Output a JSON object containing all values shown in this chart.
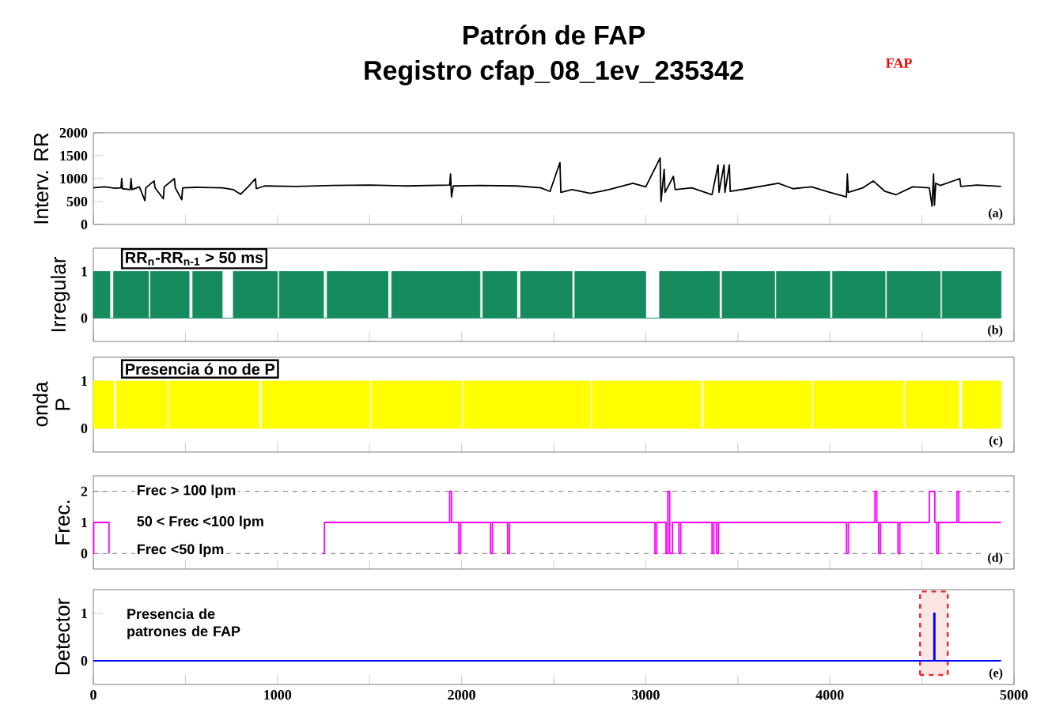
{
  "chart_data": [
    {
      "type": "line",
      "title": "Patrón de FAP",
      "subtitle": "Registro cfap_08_1ev_235342",
      "ylabel": "Interv. RR",
      "x": [
        0,
        60,
        120,
        150,
        154,
        158,
        200,
        205,
        210,
        250,
        280,
        285,
        330,
        335,
        380,
        385,
        440,
        445,
        480,
        485,
        560,
        700,
        760,
        800,
        840,
        880,
        885,
        930,
        1100,
        1300,
        1500,
        1700,
        1935,
        1940,
        1945,
        1955,
        2100,
        2300,
        2430,
        2480,
        2534,
        2539,
        2600,
        2700,
        2800,
        2930,
        3000,
        3078,
        3083,
        3100,
        3105,
        3150,
        3160,
        3250,
        3360,
        3393,
        3398,
        3425,
        3430,
        3454,
        3459,
        3550,
        3720,
        3800,
        3900,
        4000,
        4090,
        4095,
        4100,
        4180,
        4235,
        4300,
        4360,
        4450,
        4540,
        4555,
        4563,
        4568,
        4575,
        4600,
        4706,
        4711,
        4800,
        4930
      ],
      "series": [
        {
          "color": "#000000",
          "values": [
            800,
            820,
            790,
            800,
            1000,
            780,
            760,
            1000,
            760,
            820,
            520,
            800,
            950,
            800,
            560,
            820,
            1000,
            800,
            540,
            800,
            810,
            800,
            760,
            660,
            820,
            1000,
            780,
            840,
            830,
            850,
            860,
            840,
            860,
            1100,
            600,
            840,
            850,
            840,
            800,
            720,
            1350,
            700,
            760,
            680,
            760,
            900,
            820,
            1450,
            500,
            1200,
            700,
            1050,
            760,
            800,
            650,
            1300,
            700,
            1300,
            700,
            1300,
            720,
            780,
            900,
            780,
            820,
            700,
            600,
            1100,
            700,
            800,
            950,
            720,
            650,
            820,
            800,
            400,
            1100,
            420,
            900,
            850,
            1000,
            830,
            860,
            830
          ]
        }
      ],
      "xlim": [
        0,
        5000
      ],
      "ylim": [
        0,
        2000
      ],
      "yticks": [
        0,
        500,
        1000,
        1500,
        2000
      ],
      "xticks": [
        {
          "value": 0,
          "label": null
        },
        {
          "value": 500,
          "label": null
        },
        {
          "value": 1000,
          "label": null
        },
        {
          "value": 1500,
          "label": null
        },
        {
          "value": 2000,
          "label": null
        },
        {
          "value": 2500,
          "label": null
        },
        {
          "value": 3000,
          "label": null
        },
        {
          "value": 3500,
          "label": null
        },
        {
          "value": 4000,
          "label": null
        },
        {
          "value": 4500,
          "label": null
        },
        {
          "value": 5000,
          "label": null
        }
      ],
      "tick_labels": "y",
      "annotations": [
        "(a)",
        "FAP"
      ]
    },
    {
      "type": "area",
      "ylabel": "Irregular",
      "x": [
        0,
        90,
        110,
        300,
        310,
        520,
        540,
        700,
        760,
        1000,
        1010,
        1250,
        1270,
        1600,
        1620,
        2100,
        2115,
        2300,
        2320,
        2600,
        2615,
        3000,
        3075,
        3400,
        3415,
        3700,
        3710,
        4000,
        4015,
        4300,
        4310,
        4600,
        4610,
        4930
      ],
      "series": [
        {
          "color": "#168c5e",
          "values": [
            1,
            0,
            1,
            0,
            1,
            0,
            1,
            0,
            1,
            0,
            1,
            0,
            1,
            0,
            1,
            0,
            1,
            0,
            1,
            0,
            1,
            0,
            1,
            0,
            1,
            0,
            1,
            0,
            1,
            0,
            1,
            0,
            1,
            1
          ]
        }
      ],
      "xlim": [
        0,
        5000
      ],
      "ylim": [
        -0.5,
        1.5
      ],
      "yticks": [
        0,
        1
      ],
      "xticks": [
        {
          "value": 0,
          "label": null
        },
        {
          "value": 500,
          "label": null
        },
        {
          "value": 1000,
          "label": null
        },
        {
          "value": 1500,
          "label": null
        },
        {
          "value": 2000,
          "label": null
        },
        {
          "value": 2500,
          "label": null
        },
        {
          "value": 3000,
          "label": null
        },
        {
          "value": 3500,
          "label": null
        },
        {
          "value": 4000,
          "label": null
        },
        {
          "value": 4500,
          "label": null
        },
        {
          "value": 5000,
          "label": null
        }
      ],
      "tick_labels": "y",
      "annotations": [
        "(b)",
        "RR$_{n}$-RR$_{n-1}$ > 50 ms"
      ]
    },
    {
      "type": "area",
      "ylabel": "onda P",
      "x": [
        0,
        110,
        125,
        400,
        410,
        900,
        915,
        1500,
        1510,
        2000,
        2010,
        2700,
        2710,
        3300,
        3315,
        3900,
        3910,
        4400,
        4410,
        4700,
        4720,
        4930
      ],
      "series": [
        {
          "color": "#ffff00",
          "values": [
            1,
            0,
            1,
            0,
            1,
            0,
            1,
            0,
            1,
            0,
            1,
            0,
            1,
            0,
            1,
            0,
            1,
            0,
            1,
            0,
            1,
            1
          ]
        }
      ],
      "xlim": [
        0,
        5000
      ],
      "ylim": [
        -0.5,
        1.5
      ],
      "yticks": [
        0,
        1
      ],
      "xticks": [
        {
          "value": 0,
          "label": null
        },
        {
          "value": 500,
          "label": null
        },
        {
          "value": 1000,
          "label": null
        },
        {
          "value": 1500,
          "label": null
        },
        {
          "value": 2000,
          "label": null
        },
        {
          "value": 2500,
          "label": null
        },
        {
          "value": 3000,
          "label": null
        },
        {
          "value": 3500,
          "label": null
        },
        {
          "value": 4000,
          "label": null
        },
        {
          "value": 4500,
          "label": null
        },
        {
          "value": 5000,
          "label": null
        }
      ],
      "tick_labels": "y",
      "annotations": [
        "(c)",
        "Presencia ó no de P"
      ]
    },
    {
      "type": "step",
      "ylabel": "Frec.",
      "x": [
        0,
        2,
        85,
        90,
        1245,
        1255,
        1935,
        1945,
        1985,
        1995,
        2157,
        2167,
        2250,
        2260,
        3050,
        3060,
        3110,
        3120,
        3130,
        3145,
        3180,
        3190,
        3360,
        3370,
        3385,
        3395,
        4090,
        4100,
        4245,
        4255,
        4265,
        4275,
        4370,
        4380,
        4540,
        4570,
        4580,
        4590,
        4690,
        4700,
        4930
      ],
      "series": [
        {
          "color": "#ff00ff",
          "values": [
            0,
            1,
            0,
            null,
            0,
            1,
            2,
            1,
            0,
            1,
            0,
            1,
            0,
            1,
            0,
            1,
            0,
            2,
            0,
            1,
            0,
            1,
            0,
            1,
            0,
            1,
            0,
            1,
            2,
            1,
            0,
            1,
            0,
            1,
            2,
            1,
            0,
            1,
            2,
            1,
            1
          ]
        }
      ],
      "xlim": [
        0,
        5000
      ],
      "ylim": [
        -0.5,
        2.5
      ],
      "yticks": [
        0,
        1,
        2
      ],
      "xticks": [
        {
          "value": 0,
          "label": null
        },
        {
          "value": 500,
          "label": null
        },
        {
          "value": 1000,
          "label": null
        },
        {
          "value": 1500,
          "label": null
        },
        {
          "value": 2000,
          "label": null
        },
        {
          "value": 2500,
          "label": null
        },
        {
          "value": 3000,
          "label": null
        },
        {
          "value": 3500,
          "label": null
        },
        {
          "value": 4000,
          "label": null
        },
        {
          "value": 4500,
          "label": null
        },
        {
          "value": 5000,
          "label": null
        }
      ],
      "tick_labels": "y",
      "ref_lines": [
        {
          "axis": "y",
          "value": 2,
          "color": "#555555",
          "line_style": "dashed"
        },
        {
          "axis": "y",
          "value": 0,
          "color": "#555555",
          "line_style": "dashed"
        }
      ],
      "annotations": [
        "(d)",
        "Frec > 100 lpm",
        "50 < Frec <100 lpm",
        "Frec <50 lpm"
      ]
    },
    {
      "type": "step",
      "ylabel": "Detector",
      "x": [
        0,
        4565,
        4570,
        4580,
        4930
      ],
      "series": [
        {
          "color": "#0000ff",
          "values": [
            0,
            1,
            0,
            0,
            0
          ]
        }
      ],
      "xlim": [
        0,
        5000
      ],
      "ylim": [
        -0.5,
        1.5
      ],
      "yticks": [
        0,
        1
      ],
      "xticks": [
        0,
        {
          "value": 500,
          "label": null
        },
        1000,
        {
          "value": 1500,
          "label": null
        },
        2000,
        {
          "value": 2500,
          "label": null
        },
        3000,
        {
          "value": 3500,
          "label": null
        },
        4000,
        {
          "value": 4500,
          "label": null
        },
        5000
      ],
      "bands": [
        {
          "axis": "x",
          "from": 4490,
          "to": 4640,
          "color": "#e8282a"
        }
      ],
      "annotations": [
        "(e)",
        "Presencia de patrones de FAP"
      ]
    }
  ]
}
